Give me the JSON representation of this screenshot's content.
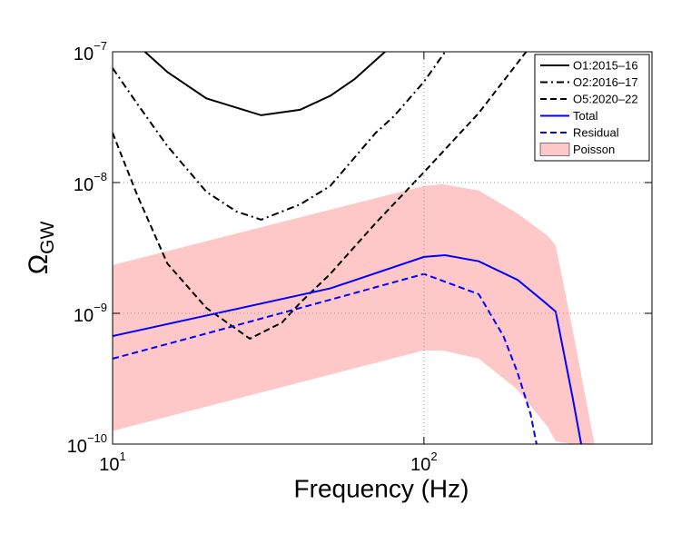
{
  "chart_data": {
    "type": "line",
    "x_label": "Frequency (Hz)",
    "y_label": {
      "symbol": "Ω",
      "subscript": "GW"
    },
    "xscale": "log",
    "yscale": "log",
    "xlim": [
      10,
      540
    ],
    "ylim": [
      1e-10,
      1e-07
    ],
    "xticks": [
      {
        "value": 10,
        "label": "101"
      },
      {
        "value": 100,
        "label": "102"
      }
    ],
    "yticks": [
      {
        "value": 1e-10,
        "label": "10−10"
      },
      {
        "value": 1e-09,
        "label": "10−9"
      },
      {
        "value": 1e-08,
        "label": "10−8"
      },
      {
        "value": 1e-07,
        "label": "10−7"
      }
    ],
    "grid": true,
    "legend": "upper right",
    "series": [
      {
        "name": "O1:2015–16",
        "color": "#000000",
        "linestyle": "solid",
        "x": [
          12.7,
          15,
          20,
          30,
          40,
          50,
          60,
          75
        ],
        "values": [
          1e-07,
          7e-08,
          4.4e-08,
          3.27e-08,
          3.6e-08,
          4.6e-08,
          6.2e-08,
          1e-07
        ]
      },
      {
        "name": "O2:2016–17",
        "color": "#000000",
        "linestyle": "dashdot",
        "x": [
          10,
          12,
          15,
          20,
          25,
          30,
          40,
          50,
          70,
          80,
          100,
          117
        ],
        "values": [
          7.5e-08,
          4e-08,
          1.9e-08,
          8.5e-09,
          6e-09,
          5.2e-09,
          6.8e-09,
          9.4e-09,
          2.4e-08,
          3.2e-08,
          5.9e-08,
          1e-07
        ]
      },
      {
        "name": "O5:2020–22",
        "color": "#000000",
        "linestyle": "dashed",
        "x": [
          10,
          12,
          15,
          20,
          27.6,
          35,
          40,
          50,
          70,
          100,
          150,
          213
        ],
        "values": [
          2.4e-08,
          8e-09,
          2.4e-09,
          1.1e-09,
          6.4e-10,
          8.5e-10,
          1.2e-09,
          2e-09,
          4.9e-09,
          1.2e-08,
          3.4e-08,
          1e-07
        ]
      },
      {
        "name": "Total",
        "color": "#0000ff",
        "linestyle": "solid",
        "x": [
          10,
          50,
          100,
          117,
          150,
          200,
          240,
          265,
          300,
          320
        ],
        "values": [
          6.7e-10,
          1.55e-09,
          2.7e-09,
          2.78e-09,
          2.5e-09,
          1.8e-09,
          1.26e-09,
          1.03e-09,
          2.3e-10,
          1e-10
        ]
      },
      {
        "name": "Residual",
        "color": "#0000ff",
        "linestyle": "dashed",
        "x": [
          10,
          20,
          50,
          100,
          150,
          180,
          200,
          220,
          230
        ],
        "values": [
          4.5e-10,
          7e-10,
          1.27e-09,
          2e-09,
          1.4e-09,
          6.7e-10,
          3.5e-10,
          1.7e-10,
          1e-10
        ]
      }
    ],
    "bands": [
      {
        "name": "Poisson",
        "color": "#ffc8c8",
        "x": [
          10,
          50,
          100,
          115,
          150,
          200,
          250,
          265,
          300,
          353
        ],
        "upper": [
          2.34e-09,
          6.2e-09,
          9.4e-09,
          9.7e-09,
          8.7e-09,
          5.8e-09,
          3.9e-09,
          3.3e-09,
          7.6e-10,
          1e-10
        ],
        "lower": [
          1.26e-10,
          3.4e-10,
          5.2e-10,
          5.2e-10,
          4.5e-10,
          2.6e-10,
          1.35e-10,
          1.05e-10,
          1e-10,
          1e-10
        ]
      }
    ]
  }
}
